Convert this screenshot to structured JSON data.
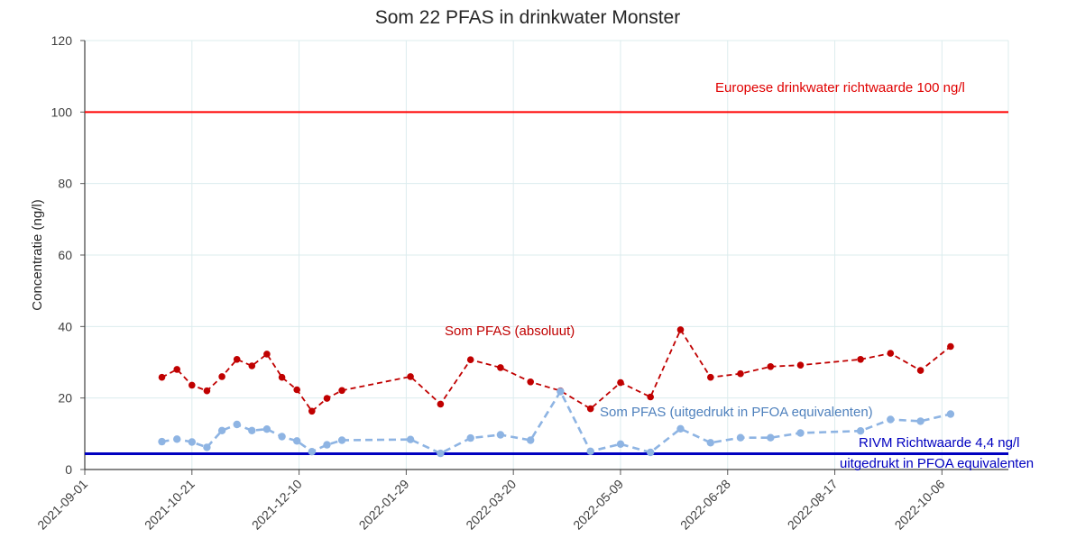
{
  "chart_data": {
    "type": "line",
    "title": "Som 22 PFAS in drinkwater Monster",
    "ylabel": "Concentratie (ng/l)",
    "xlabel": "",
    "ylim": [
      0,
      120
    ],
    "xlim": [
      "2021-09-01",
      "2022-11-06"
    ],
    "yticks": [
      0,
      20,
      40,
      60,
      80,
      100,
      120
    ],
    "xticks": [
      "2021-09-01",
      "2021-10-21",
      "2021-12-10",
      "2022-01-29",
      "2022-03-20",
      "2022-05-09",
      "2022-06-28",
      "2022-08-17",
      "2022-10-06"
    ],
    "grid": true,
    "series": [
      {
        "name": "Som PFAS (absoluut)",
        "color": "#c00000",
        "style": "dashed",
        "points": [
          [
            "2021-10-07",
            25.8
          ],
          [
            "2021-10-14",
            28.0
          ],
          [
            "2021-10-21",
            23.6
          ],
          [
            "2021-10-28",
            22.0
          ],
          [
            "2021-11-04",
            26.0
          ],
          [
            "2021-11-11",
            30.8
          ],
          [
            "2021-11-18",
            29.0
          ],
          [
            "2021-11-25",
            32.3
          ],
          [
            "2021-12-02",
            25.8
          ],
          [
            "2021-12-09",
            22.3
          ],
          [
            "2021-12-16",
            16.3
          ],
          [
            "2021-12-23",
            19.9
          ],
          [
            "2021-12-30",
            22.1
          ],
          [
            "2022-01-31",
            26.0
          ],
          [
            "2022-02-14",
            18.3
          ],
          [
            "2022-02-28",
            30.7
          ],
          [
            "2022-03-14",
            28.5
          ],
          [
            "2022-03-28",
            24.5
          ],
          [
            "2022-04-11",
            22.0
          ],
          [
            "2022-04-25",
            17.0
          ],
          [
            "2022-05-09",
            24.3
          ],
          [
            "2022-05-23",
            20.3
          ],
          [
            "2022-06-06",
            39.1
          ],
          [
            "2022-06-20",
            25.8
          ],
          [
            "2022-07-04",
            26.8
          ],
          [
            "2022-07-18",
            28.8
          ],
          [
            "2022-08-01",
            29.2
          ],
          [
            "2022-08-29",
            30.8
          ],
          [
            "2022-09-12",
            32.5
          ],
          [
            "2022-09-26",
            27.7
          ],
          [
            "2022-10-10",
            34.4
          ]
        ]
      },
      {
        "name": "Som PFAS (uitgedrukt in PFOA equivalenten)",
        "color": "#8eb4e3",
        "style": "dashed",
        "points": [
          [
            "2021-10-07",
            7.8
          ],
          [
            "2021-10-14",
            8.5
          ],
          [
            "2021-10-21",
            7.7
          ],
          [
            "2021-10-28",
            6.2
          ],
          [
            "2021-11-04",
            10.9
          ],
          [
            "2021-11-11",
            12.6
          ],
          [
            "2021-11-18",
            10.9
          ],
          [
            "2021-11-25",
            11.3
          ],
          [
            "2021-12-02",
            9.2
          ],
          [
            "2021-12-09",
            8.0
          ],
          [
            "2021-12-16",
            5.0
          ],
          [
            "2021-12-23",
            6.9
          ],
          [
            "2021-12-30",
            8.2
          ],
          [
            "2022-01-31",
            8.4
          ],
          [
            "2022-02-14",
            4.5
          ],
          [
            "2022-02-28",
            8.8
          ],
          [
            "2022-03-14",
            9.7
          ],
          [
            "2022-03-28",
            8.2
          ],
          [
            "2022-04-11",
            21.8
          ],
          [
            "2022-04-25",
            5.1
          ],
          [
            "2022-05-09",
            7.1
          ],
          [
            "2022-05-23",
            4.8
          ],
          [
            "2022-06-06",
            11.4
          ],
          [
            "2022-06-20",
            7.5
          ],
          [
            "2022-07-04",
            8.9
          ],
          [
            "2022-07-18",
            8.9
          ],
          [
            "2022-08-01",
            10.2
          ],
          [
            "2022-08-29",
            10.8
          ],
          [
            "2022-09-12",
            14.0
          ],
          [
            "2022-09-26",
            13.5
          ],
          [
            "2022-10-10",
            15.5
          ]
        ]
      }
    ],
    "reference_lines": [
      {
        "name": "Europese drinkwater richtwaarde 100 ng/l",
        "value": 100,
        "color": "#ff0000"
      },
      {
        "name": "RIVM Richtwaarde 4,4 ng/l",
        "value": 4.4,
        "color": "#0000c0"
      }
    ],
    "annotations": [
      {
        "text": "Europese drinkwater richtwaarde 100 ng/l",
        "color": "#e00000"
      },
      {
        "text": "Som PFAS (absoluut)",
        "color": "#c00000"
      },
      {
        "text": "Som PFAS (uitgedrukt in PFOA equivalenten)",
        "color": "#4f81bd"
      },
      {
        "text": "RIVM Richtwaarde 4,4 ng/l",
        "color": "#0000c0"
      },
      {
        "text": "uitgedrukt in PFOA equivalenten",
        "color": "#0000c0"
      }
    ]
  }
}
